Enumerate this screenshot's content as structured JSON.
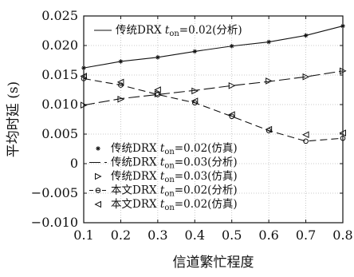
{
  "chart_data": {
    "type": "line",
    "xlabel": "信道繁忙程度",
    "ylabel": "平均时延 (s)",
    "xlim": [
      0.1,
      0.8
    ],
    "ylim": [
      -0.01,
      0.025
    ],
    "x_ticks": [
      "0.1",
      "0.2",
      "0.3",
      "0.4",
      "0.5",
      "0.6",
      "0.7",
      "0.8"
    ],
    "y_ticks": [
      "−0.010",
      "−0.005",
      "0",
      "0.005",
      "0.010",
      "0.015",
      "0.020",
      "0.025"
    ],
    "x": [
      0.1,
      0.2,
      0.3,
      0.4,
      0.5,
      0.6,
      0.7,
      0.8
    ],
    "series": [
      {
        "name_pre": "传统DRX ",
        "name_t": "t",
        "name_sub": "on",
        "name_post": "=0.02(分析)",
        "values": [
          0.0162,
          0.0173,
          0.018,
          0.019,
          0.0199,
          0.0206,
          0.0217,
          0.0233
        ],
        "line": "solid",
        "marker": "none",
        "legend": "top"
      },
      {
        "name_pre": "传统DRX ",
        "name_t": "t",
        "name_sub": "on",
        "name_post": "=0.02(仿真)",
        "values": [
          0.0162,
          0.0173,
          0.018,
          0.019,
          0.0199,
          0.0206,
          0.0217,
          0.0233
        ],
        "line": "none",
        "marker": "star",
        "legend": "bottom"
      },
      {
        "name_pre": "传统DRX ",
        "name_t": "t",
        "name_sub": "on",
        "name_post": "=0.03(分析)",
        "values": [
          0.0099,
          0.011,
          0.0117,
          0.0124,
          0.0132,
          0.0139,
          0.0147,
          0.0157
        ],
        "line": "longdash",
        "marker": "none",
        "legend": "bottom"
      },
      {
        "name_pre": "传统DRX ",
        "name_t": "t",
        "name_sub": "on",
        "name_post": "=0.03(仿真)",
        "values": [
          0.0099,
          0.0109,
          0.0118,
          0.0123,
          0.0132,
          0.014,
          0.0147,
          0.0157
        ],
        "line": "none",
        "marker": "triangle-right",
        "legend": "bottom"
      },
      {
        "name_pre": "本文DRX ",
        "name_t": "t",
        "name_sub": "on",
        "name_post": "=0.02(分析)",
        "values": [
          0.0144,
          0.0133,
          0.0117,
          0.0103,
          0.008,
          0.0056,
          0.0038,
          0.0043
        ],
        "line": "dashed",
        "marker": "circle",
        "legend": "bottom"
      },
      {
        "name_pre": "本文DRX ",
        "name_t": "t",
        "name_sub": "on",
        "name_post": "=0.02(仿真)",
        "values": [
          0.0148,
          0.0138,
          0.0125,
          0.0106,
          0.0083,
          0.0058,
          0.0049,
          0.0052
        ],
        "line": "none",
        "marker": "triangle-left",
        "legend": "bottom"
      }
    ]
  }
}
